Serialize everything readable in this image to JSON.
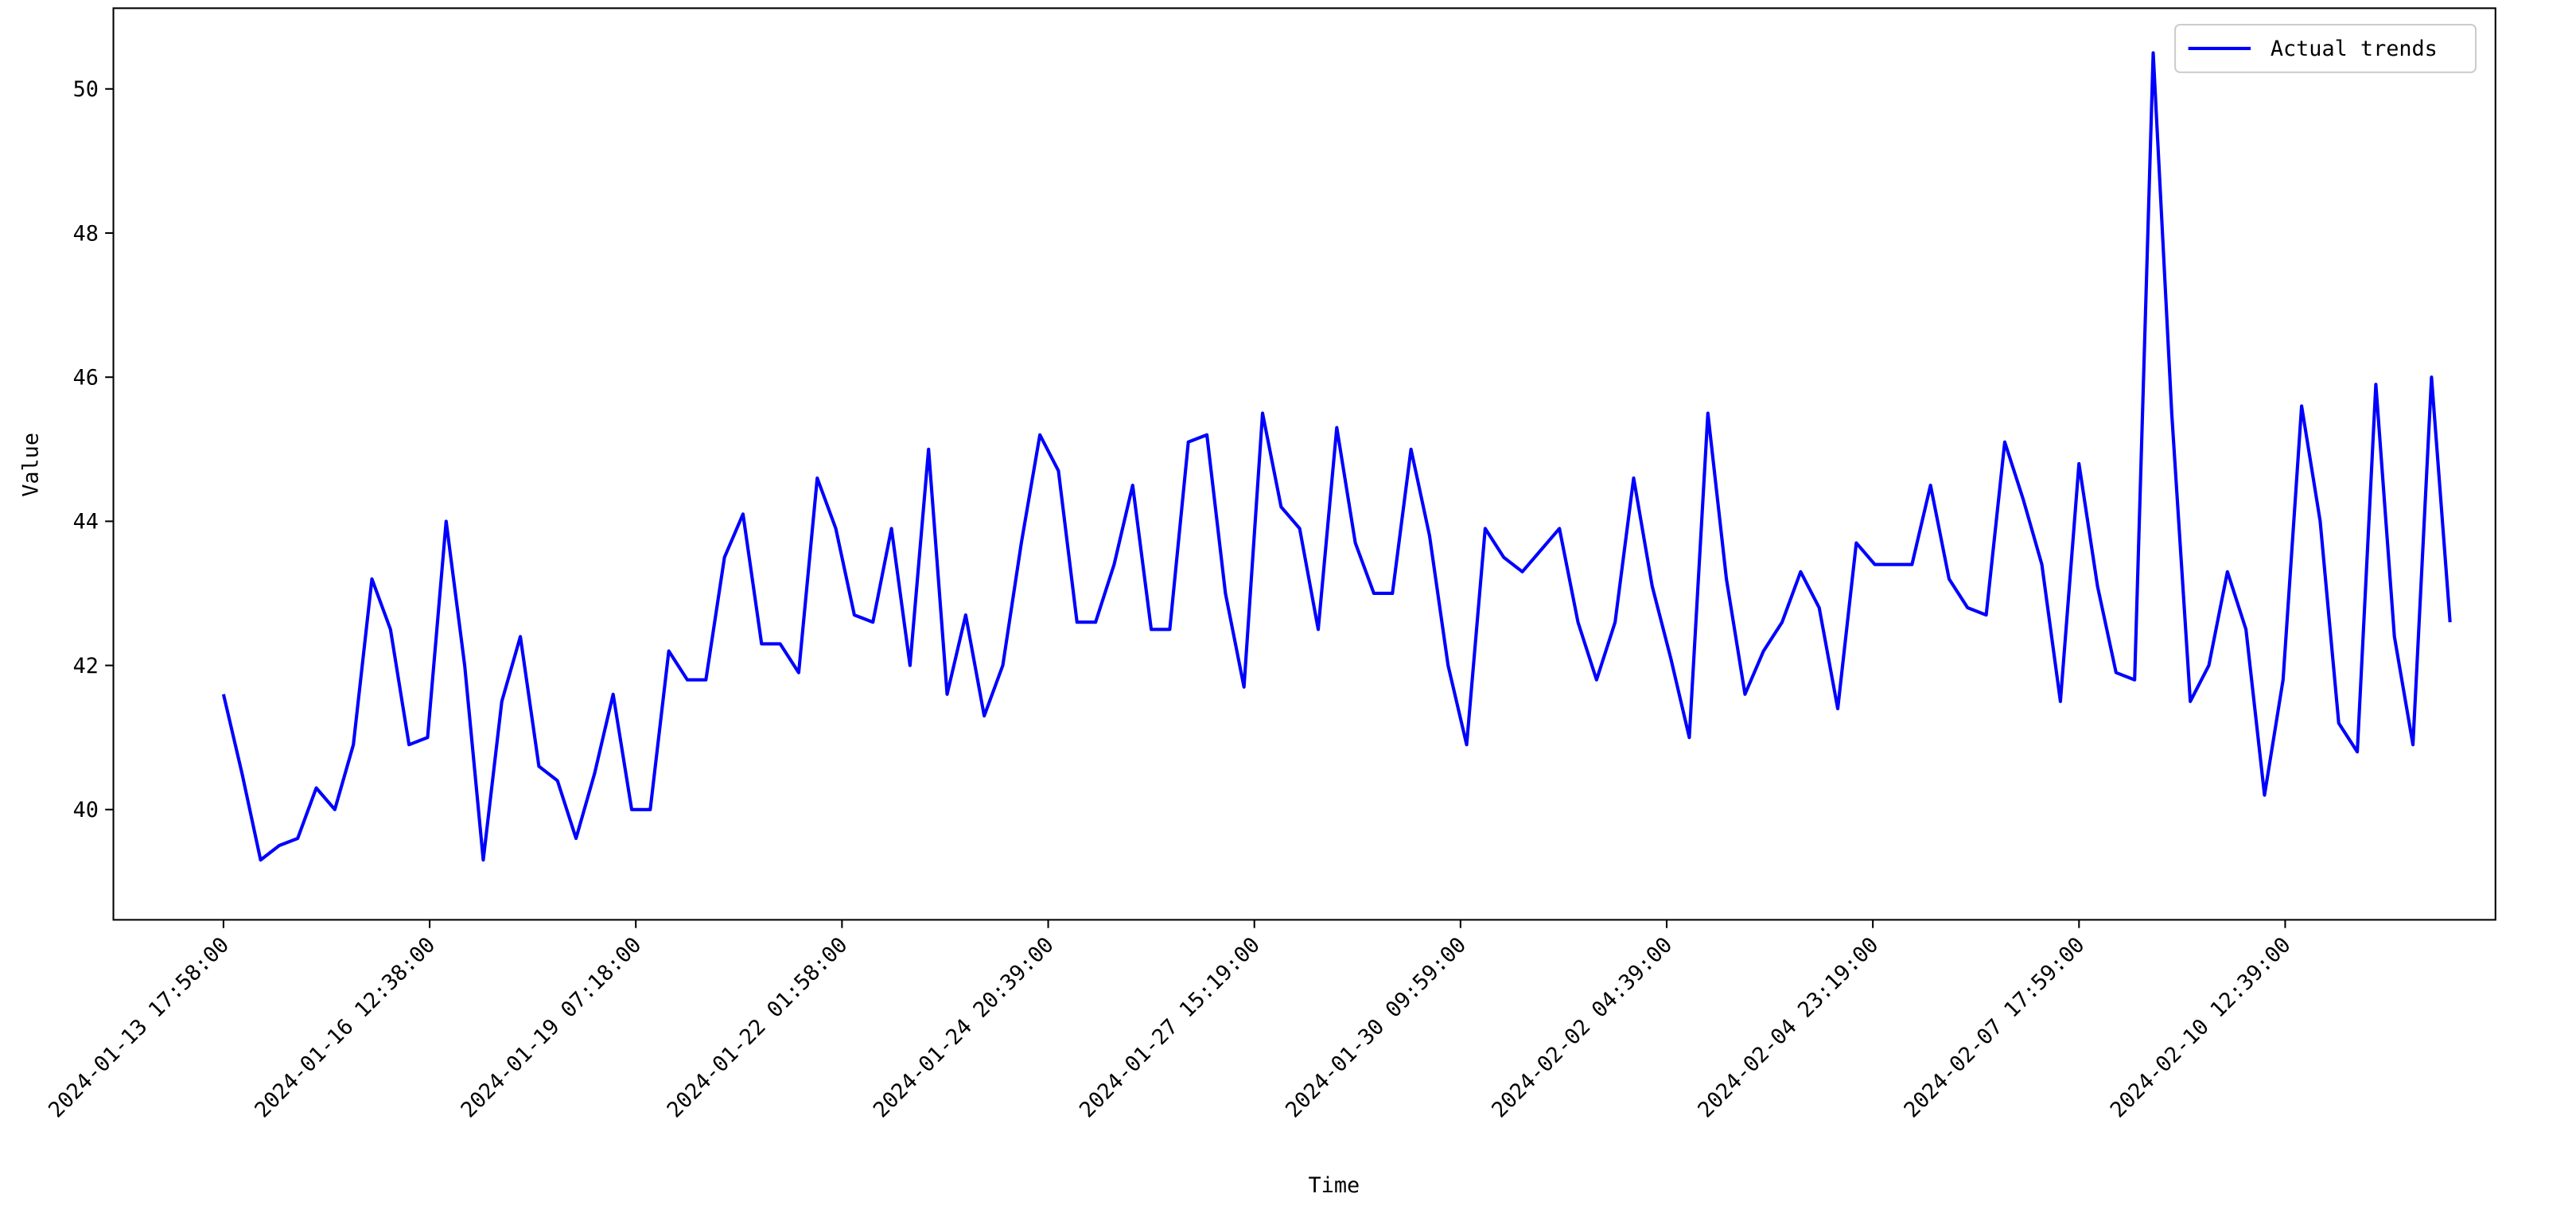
{
  "chart_data": {
    "type": "line",
    "xlabel": "Time",
    "ylabel": "Value",
    "x": [
      "2024-01-13 17:58:00",
      "2024-01-13 23:58:00",
      "2024-01-14 05:58:00",
      "2024-01-14 11:58:00",
      "2024-01-14 17:58:00",
      "2024-01-14 23:58:00",
      "2024-01-15 05:58:00",
      "2024-01-15 11:58:00",
      "2024-01-15 17:58:00",
      "2024-01-15 23:58:00",
      "2024-01-16 05:58:00",
      "2024-01-16 11:58:00",
      "2024-01-16 17:58:00",
      "2024-01-16 23:58:00",
      "2024-01-17 05:58:00",
      "2024-01-17 11:58:00",
      "2024-01-17 17:58:00",
      "2024-01-17 23:58:00",
      "2024-01-18 05:58:00",
      "2024-01-18 11:58:00",
      "2024-01-18 17:58:00",
      "2024-01-18 23:58:00",
      "2024-01-19 05:58:00",
      "2024-01-19 11:58:00",
      "2024-01-19 17:58:00",
      "2024-01-19 23:58:00",
      "2024-01-20 05:58:00",
      "2024-01-20 11:58:00",
      "2024-01-20 17:58:00",
      "2024-01-20 23:58:00",
      "2024-01-21 05:58:00",
      "2024-01-21 11:58:00",
      "2024-01-21 17:58:00",
      "2024-01-21 23:58:00",
      "2024-01-22 05:58:00",
      "2024-01-22 11:58:00",
      "2024-01-22 17:58:00",
      "2024-01-22 23:58:00",
      "2024-01-23 05:58:00",
      "2024-01-23 11:58:00",
      "2024-01-23 17:58:00",
      "2024-01-23 23:58:00",
      "2024-01-24 05:58:00",
      "2024-01-24 11:58:00",
      "2024-01-24 17:58:00",
      "2024-01-24 23:58:00",
      "2024-01-25 05:58:00",
      "2024-01-25 11:58:00",
      "2024-01-25 17:58:00",
      "2024-01-25 23:58:00",
      "2024-01-26 05:58:00",
      "2024-01-26 11:58:00",
      "2024-01-26 17:58:00",
      "2024-01-26 23:58:00",
      "2024-01-27 05:58:00",
      "2024-01-27 11:58:00",
      "2024-01-27 17:58:00",
      "2024-01-27 23:58:00",
      "2024-01-28 05:58:00",
      "2024-01-28 11:58:00",
      "2024-01-28 17:58:00",
      "2024-01-28 23:58:00",
      "2024-01-29 05:58:00",
      "2024-01-29 11:58:00",
      "2024-01-29 17:58:00",
      "2024-01-29 23:58:00",
      "2024-01-30 05:58:00",
      "2024-01-30 11:58:00",
      "2024-01-30 17:58:00",
      "2024-01-30 23:58:00",
      "2024-01-31 05:58:00",
      "2024-01-31 11:58:00",
      "2024-01-31 17:58:00",
      "2024-01-31 23:58:00",
      "2024-02-01 05:58:00",
      "2024-02-01 11:58:00",
      "2024-02-01 17:58:00",
      "2024-02-01 23:58:00",
      "2024-02-02 05:58:00",
      "2024-02-02 11:58:00",
      "2024-02-02 17:58:00",
      "2024-02-02 23:58:00",
      "2024-02-03 05:58:00",
      "2024-02-03 11:58:00",
      "2024-02-03 17:58:00",
      "2024-02-03 23:58:00",
      "2024-02-04 05:58:00",
      "2024-02-04 11:58:00",
      "2024-02-04 17:58:00",
      "2024-02-04 23:58:00",
      "2024-02-05 05:58:00",
      "2024-02-05 11:58:00",
      "2024-02-05 17:58:00",
      "2024-02-05 23:58:00",
      "2024-02-06 05:58:00",
      "2024-02-06 11:58:00",
      "2024-02-06 17:58:00",
      "2024-02-06 23:58:00",
      "2024-02-07 05:58:00",
      "2024-02-07 11:58:00",
      "2024-02-07 17:58:00",
      "2024-02-07 23:58:00",
      "2024-02-08 05:58:00",
      "2024-02-08 11:58:00",
      "2024-02-08 17:58:00",
      "2024-02-08 23:58:00",
      "2024-02-09 05:58:00",
      "2024-02-09 11:58:00",
      "2024-02-09 17:58:00",
      "2024-02-09 23:58:00",
      "2024-02-10 05:58:00",
      "2024-02-10 11:58:00",
      "2024-02-10 17:58:00",
      "2024-02-10 23:58:00",
      "2024-02-11 05:58:00",
      "2024-02-11 11:58:00",
      "2024-02-11 17:58:00",
      "2024-02-11 23:58:00",
      "2024-02-12 05:58:00",
      "2024-02-12 11:58:00",
      "2024-02-12 17:58:00"
    ],
    "series": [
      {
        "name": "Actual trends",
        "color": "#0000ff",
        "values": [
          41.6,
          40.5,
          39.3,
          39.5,
          39.6,
          40.3,
          40.0,
          40.9,
          43.2,
          42.5,
          40.9,
          41.0,
          44.0,
          42.0,
          39.3,
          41.5,
          42.4,
          40.6,
          40.4,
          39.6,
          40.5,
          41.6,
          40.0,
          40.0,
          42.2,
          41.8,
          41.8,
          43.5,
          44.1,
          42.3,
          42.3,
          41.9,
          44.6,
          43.9,
          42.7,
          42.6,
          43.9,
          42.0,
          45.0,
          41.6,
          42.7,
          41.3,
          42.0,
          43.7,
          45.2,
          44.7,
          42.6,
          42.6,
          43.4,
          44.5,
          42.5,
          42.5,
          45.1,
          45.2,
          43.0,
          41.7,
          45.5,
          44.2,
          43.9,
          42.5,
          45.3,
          43.7,
          43.0,
          43.0,
          45.0,
          43.8,
          42.0,
          40.9,
          43.9,
          43.5,
          43.3,
          43.6,
          43.9,
          42.6,
          41.8,
          42.6,
          44.6,
          43.1,
          42.1,
          41.0,
          45.5,
          43.2,
          41.6,
          42.2,
          42.6,
          43.3,
          42.8,
          41.4,
          43.7,
          43.4,
          43.4,
          43.4,
          44.5,
          43.2,
          42.8,
          42.7,
          45.1,
          44.3,
          43.4,
          41.5,
          44.8,
          43.1,
          41.9,
          41.8,
          50.5,
          45.5,
          41.5,
          42.0,
          43.3,
          42.5,
          40.2,
          41.8,
          45.6,
          44.0,
          41.2,
          40.8,
          45.9,
          42.4,
          40.9,
          46.0,
          42.6
        ]
      }
    ],
    "xlim": [
      "2024-01-12 06:22:00",
      "2024-02-13 08:39:00"
    ],
    "ylim": [
      38.47,
      51.12
    ],
    "xticks": [
      "2024-01-13 17:58:00",
      "2024-01-16 12:38:00",
      "2024-01-19 07:18:00",
      "2024-01-22 01:58:00",
      "2024-01-24 20:39:00",
      "2024-01-27 15:19:00",
      "2024-01-30 09:59:00",
      "2024-02-02 04:39:00",
      "2024-02-04 23:19:00",
      "2024-02-07 17:59:00",
      "2024-02-10 12:39:00"
    ],
    "yticks": [
      40,
      42,
      44,
      46,
      48,
      50
    ],
    "legend": "upper right"
  }
}
